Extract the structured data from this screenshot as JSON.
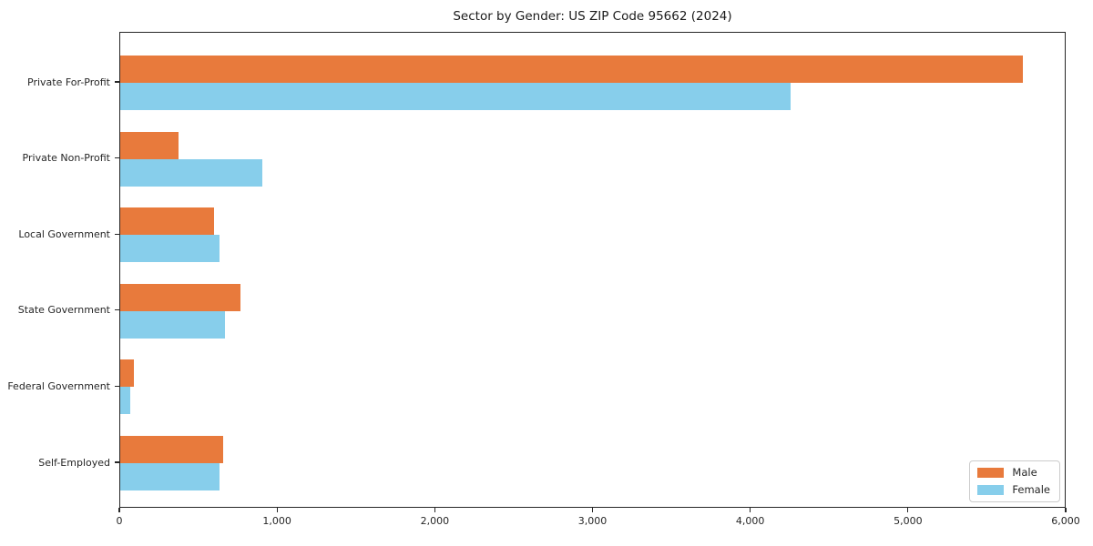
{
  "chart_data": {
    "type": "bar",
    "orientation": "horizontal",
    "title": "Sector by Gender: US ZIP Code 95662 (2024)",
    "categories": [
      "Private For-Profit",
      "Private Non-Profit",
      "Local Government",
      "State Government",
      "Federal Government",
      "Self-Employed"
    ],
    "series": [
      {
        "name": "Male",
        "color": "#e87a3c",
        "values": [
          5720,
          370,
          595,
          765,
          85,
          655
        ]
      },
      {
        "name": "Female",
        "color": "#87ceeb",
        "values": [
          4250,
          900,
          630,
          665,
          65,
          630
        ]
      }
    ],
    "xlabel": "",
    "ylabel": "",
    "xlim": [
      0,
      6000
    ],
    "xticks": [
      0,
      1000,
      2000,
      3000,
      4000,
      5000,
      6000
    ],
    "xtick_labels": [
      "0",
      "1,000",
      "2,000",
      "3,000",
      "4,000",
      "5,000",
      "6,000"
    ],
    "grid": false,
    "legend_position": "lower right",
    "plot_background": "#ffffff",
    "spine_color": "#262626"
  }
}
